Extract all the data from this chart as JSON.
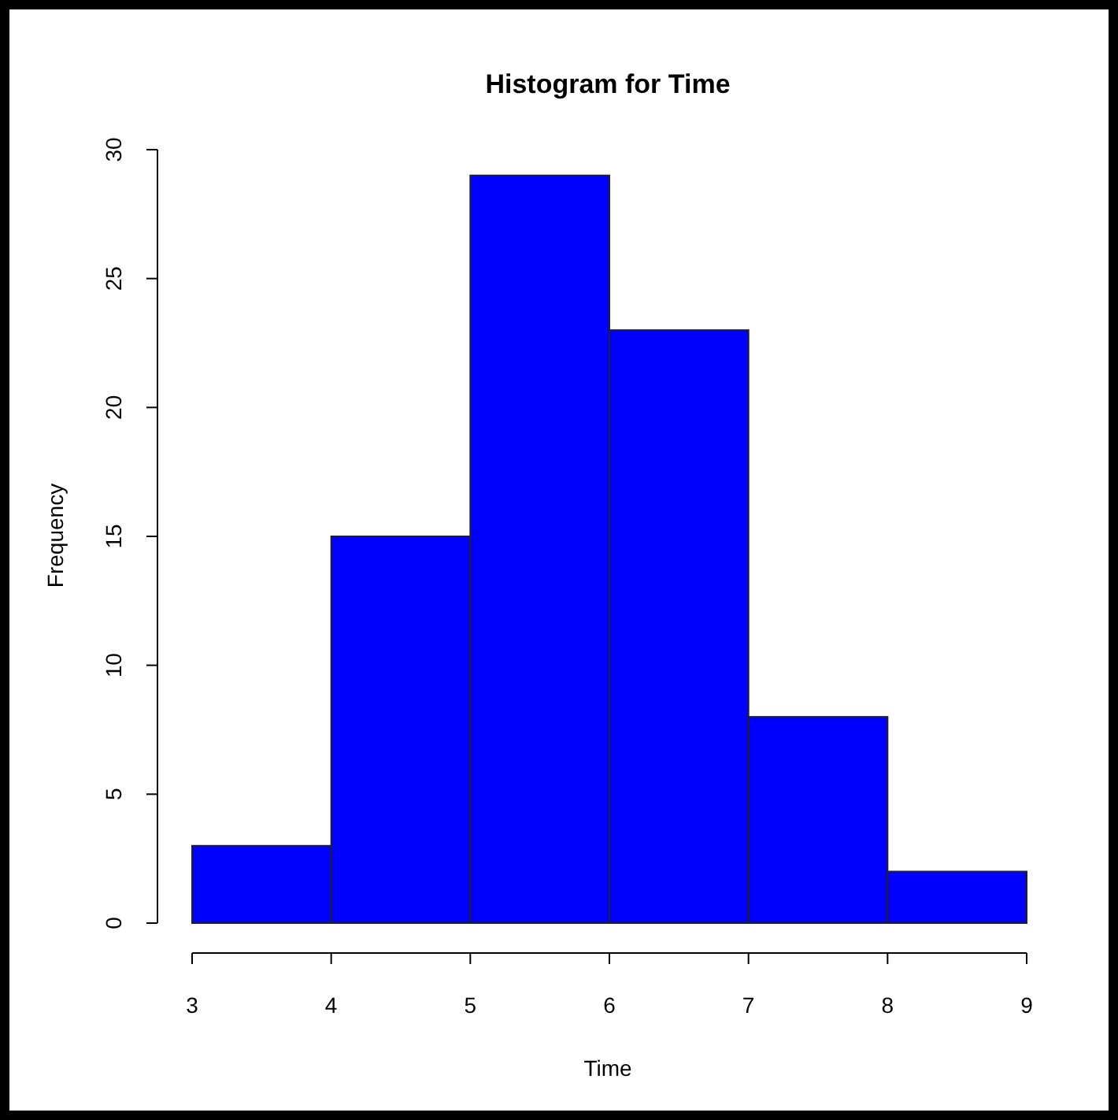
{
  "chart_data": {
    "type": "histogram",
    "title": "Histogram for Time",
    "xlabel": "Time",
    "ylabel": "Frequency",
    "bins": [
      3,
      4,
      5,
      6,
      7,
      8,
      9
    ],
    "values": [
      3,
      15,
      29,
      23,
      8,
      2
    ],
    "color": "#0000ff",
    "xlim": [
      3,
      9
    ],
    "xticks": [
      3,
      4,
      5,
      6,
      7,
      8,
      9
    ],
    "ylim": [
      0,
      30
    ],
    "yticks": [
      0,
      5,
      10,
      15,
      20,
      25,
      30
    ]
  }
}
